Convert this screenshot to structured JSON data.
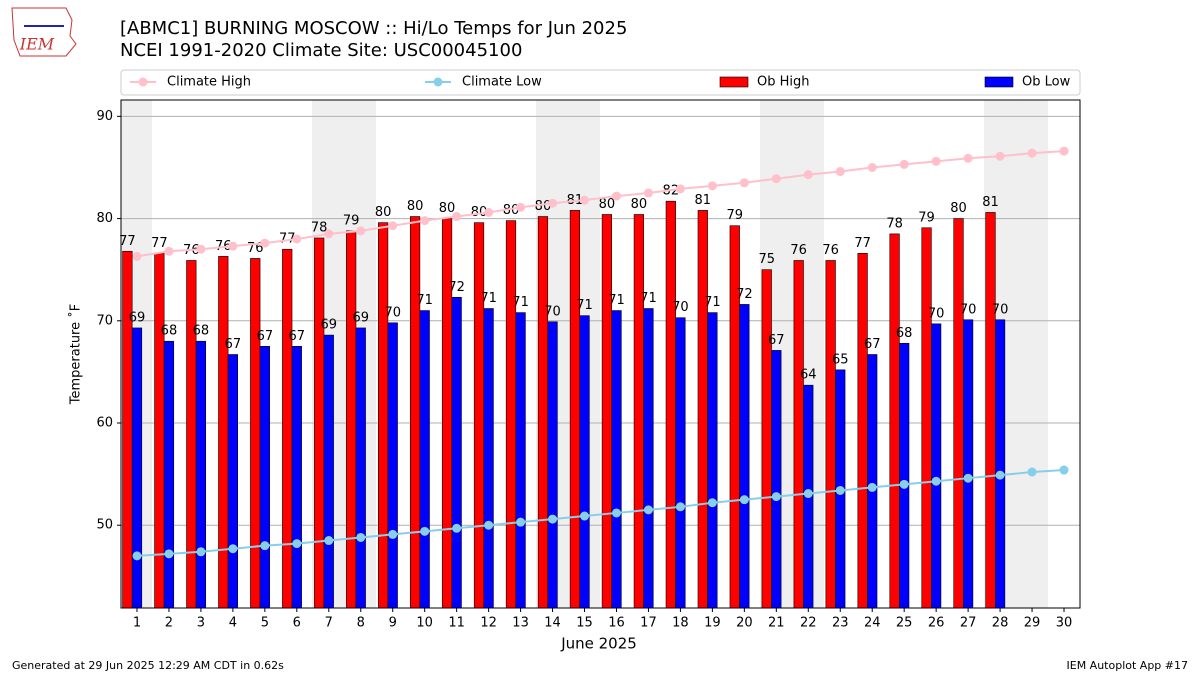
{
  "logo_text": "IEM",
  "chart_data": {
    "type": "bar",
    "title": "[ABMC1] BURNING MOSCOW :: Hi/Lo Temps for Jun 2025",
    "subtitle": "NCEI 1991-2020 Climate Site: USC00045100",
    "xlabel": "June 2025",
    "ylabel": "Temperature ˚F",
    "categories": [
      "1",
      "2",
      "3",
      "4",
      "5",
      "6",
      "7",
      "8",
      "9",
      "10",
      "11",
      "12",
      "13",
      "14",
      "15",
      "16",
      "17",
      "18",
      "19",
      "20",
      "21",
      "22",
      "23",
      "24",
      "25",
      "26",
      "27",
      "28",
      "29",
      "30"
    ],
    "ylim": [
      41.9,
      91.6
    ],
    "yticks": [
      50,
      60,
      70,
      80,
      90
    ],
    "grid": true,
    "legend": "upper center",
    "series": [
      {
        "name": "Climate High",
        "type": "line",
        "color": "#ffc0cb",
        "values": [
          76.3,
          76.8,
          77.0,
          77.3,
          77.6,
          78.0,
          78.5,
          78.8,
          79.3,
          79.8,
          80.2,
          80.6,
          81.1,
          81.5,
          81.8,
          82.2,
          82.5,
          82.9,
          83.2,
          83.5,
          83.9,
          84.3,
          84.6,
          85.0,
          85.3,
          85.6,
          85.9,
          86.1,
          86.4,
          86.6
        ]
      },
      {
        "name": "Climate Low",
        "type": "line",
        "color": "#87ceeb",
        "values": [
          47.0,
          47.2,
          47.4,
          47.7,
          48.0,
          48.2,
          48.5,
          48.8,
          49.1,
          49.4,
          49.7,
          50.0,
          50.3,
          50.6,
          50.9,
          51.2,
          51.5,
          51.8,
          52.2,
          52.5,
          52.8,
          53.1,
          53.4,
          53.7,
          54.0,
          54.3,
          54.6,
          54.9,
          55.2,
          55.4
        ]
      },
      {
        "name": "Ob High",
        "type": "bar",
        "color": "#ff0000",
        "values": [
          76.8,
          76.6,
          75.9,
          76.3,
          76.1,
          77.0,
          78.1,
          78.8,
          79.6,
          80.2,
          80.0,
          79.6,
          79.8,
          80.2,
          80.8,
          80.4,
          80.4,
          81.7,
          80.8,
          79.3,
          75.0,
          75.9,
          75.9,
          76.6,
          78.5,
          79.1,
          80.0,
          80.6,
          null,
          null
        ],
        "value_labels": [
          "77",
          "77",
          "76",
          "76",
          "76",
          "77",
          "78",
          "79",
          "80",
          "80",
          "80",
          "80",
          "80",
          "80",
          "81",
          "80",
          "80",
          "82",
          "81",
          "79",
          "75",
          "76",
          "76",
          "77",
          "78",
          "79",
          "80",
          "81",
          null,
          null
        ]
      },
      {
        "name": "Ob Low",
        "type": "bar",
        "color": "#0000ff",
        "values": [
          69.3,
          68.0,
          68.0,
          66.7,
          67.5,
          67.5,
          68.6,
          69.3,
          69.8,
          71.0,
          72.3,
          71.2,
          70.8,
          69.9,
          70.5,
          71.0,
          71.2,
          70.3,
          70.8,
          71.6,
          67.1,
          63.7,
          65.2,
          66.7,
          67.8,
          69.7,
          70.1,
          70.1,
          null,
          null
        ],
        "value_labels": [
          "69",
          "68",
          "68",
          "67",
          "67",
          "67",
          "69",
          "69",
          "70",
          "71",
          "72",
          "71",
          "71",
          "70",
          "71",
          "71",
          "71",
          "70",
          "71",
          "72",
          "67",
          "64",
          "65",
          "67",
          "68",
          "70",
          "70",
          "70",
          null,
          null
        ]
      }
    ]
  },
  "footer": {
    "left": "Generated at 29 Jun 2025 12:29 AM CDT in 0.62s",
    "right": "IEM Autoplot App #17"
  }
}
